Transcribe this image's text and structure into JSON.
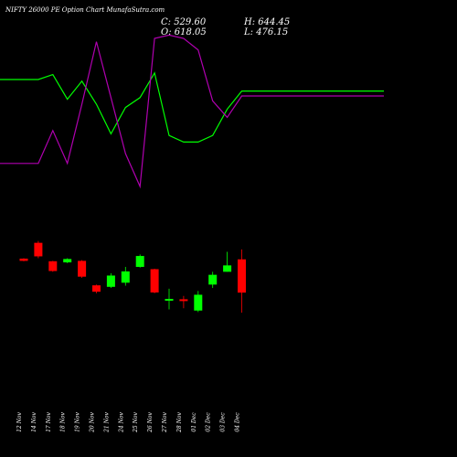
{
  "header": {
    "title": "NIFTY 26000  PE Option  Chart MunafaSutra.com",
    "close": "C: 529.60",
    "open": "O: 618.05",
    "high": "H: 644.45",
    "low": "L: 476.15"
  },
  "colors": {
    "background": "#000000",
    "up": "#00ff00",
    "down": "#ff0000",
    "upper_line": "#00ff00",
    "lower_line": "#b000b0",
    "text": "#ffffff"
  },
  "chart_data": {
    "type": "candlestick",
    "categories": [
      "12 Nov",
      "14 Nov",
      "17 Nov",
      "18 Nov",
      "19 Nov",
      "20 Nov",
      "21 Nov",
      "24 Nov",
      "25 Nov",
      "26 Nov",
      "27 Nov",
      "28 Nov",
      "01 Dec",
      "02 Dec",
      "03 Dec",
      "04 Dec"
    ],
    "price_range": [
      360,
      700
    ],
    "candles": [
      {
        "open": 620,
        "close": 614,
        "high": 621,
        "low": 613
      },
      {
        "open": 662,
        "close": 626,
        "high": 667,
        "low": 621
      },
      {
        "open": 613,
        "close": 587,
        "high": 614,
        "low": 585
      },
      {
        "open": 610,
        "close": 619,
        "high": 621,
        "low": 608
      },
      {
        "open": 614,
        "close": 572,
        "high": 616,
        "low": 569
      },
      {
        "open": 549,
        "close": 532,
        "high": 551,
        "low": 528
      },
      {
        "open": 545,
        "close": 575,
        "high": 581,
        "low": 542
      },
      {
        "open": 556,
        "close": 586,
        "high": 598,
        "low": 548
      },
      {
        "open": 598,
        "close": 627,
        "high": 631,
        "low": 596
      },
      {
        "open": 592,
        "close": 530,
        "high": 593,
        "low": 528
      },
      {
        "open": 509,
        "close": 513,
        "high": 540,
        "low": 485
      },
      {
        "open": 512,
        "close": 510,
        "high": 521,
        "low": 488
      },
      {
        "open": 482,
        "close": 524,
        "high": 534,
        "low": 478
      },
      {
        "open": 551,
        "close": 577,
        "high": 585,
        "low": 542
      },
      {
        "open": 585,
        "close": 602,
        "high": 638,
        "low": 585
      },
      {
        "open": 618.05,
        "close": 529.6,
        "high": 644.45,
        "low": 476.15
      }
    ],
    "indicator_range": [
      0,
      100
    ],
    "upper_line": [
      85,
      85,
      88,
      73,
      84,
      70,
      52,
      68,
      74,
      89,
      51,
      47,
      47,
      51,
      67,
      78
    ],
    "lower_line": [
      34,
      34,
      54,
      34,
      70,
      108,
      74,
      40,
      20,
      110,
      112,
      110,
      103,
      72,
      62,
      75
    ]
  }
}
